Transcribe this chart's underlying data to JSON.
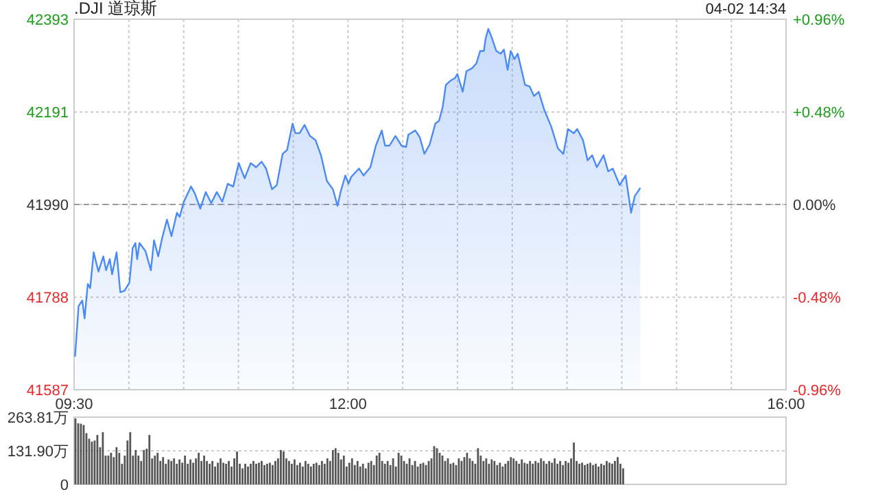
{
  "chart_data": [
    {
      "type": "area",
      "title": ".DJI 道琼斯",
      "annotations": [
        "04-02 14:34"
      ],
      "xlim": [
        9.5,
        16
      ],
      "xticks": [
        {
          "value": 9.5,
          "label": "09:30"
        },
        {
          "value": 10,
          "label": null
        },
        {
          "value": 10.5,
          "label": null
        },
        {
          "value": 11,
          "label": null
        },
        {
          "value": 11.5,
          "label": null
        },
        {
          "value": 12,
          "label": "12:00"
        },
        {
          "value": 12.5,
          "label": null
        },
        {
          "value": 13,
          "label": null
        },
        {
          "value": 13.5,
          "label": null
        },
        {
          "value": 14,
          "label": null
        },
        {
          "value": 14.5,
          "label": null
        },
        {
          "value": 15,
          "label": null
        },
        {
          "value": 15.5,
          "label": null
        },
        {
          "value": 16,
          "label": "16:00"
        }
      ],
      "ylim": [
        41587,
        42393
      ],
      "yticks": [
        41587,
        41788,
        41990,
        42191,
        42393
      ],
      "y2lim": [
        -0.96,
        0.96
      ],
      "y2ticks": [
        {
          "value": -0.96,
          "label": "-0.96%"
        },
        {
          "value": -0.48,
          "label": "-0.48%"
        },
        {
          "value": 0,
          "label": "0.00%"
        },
        {
          "value": 0.48,
          "label": "+0.48%"
        },
        {
          "value": 0.96,
          "label": "+0.96%"
        }
      ],
      "grid": true,
      "ref_lines": [
        {
          "axis": "y",
          "value": 41990,
          "color": "#999999",
          "line_style": "dashed"
        }
      ],
      "series": [
        {
          "color": "#4a8af4",
          "x": [
            9.509,
            9.541,
            9.575,
            9.596,
            9.625,
            9.647,
            9.679,
            9.722,
            9.767,
            9.792,
            9.826,
            9.847,
            9.888,
            9.922,
            9.96,
            10.005,
            10.035,
            10.06,
            10.076,
            10.097,
            10.151,
            10.201,
            10.23,
            10.268,
            10.305,
            10.348,
            10.389,
            10.439,
            10.464,
            10.502,
            10.568,
            10.602,
            10.652,
            10.702,
            10.752,
            10.803,
            10.853,
            10.903,
            10.953,
            11.003,
            11.057,
            11.112,
            11.162,
            11.212,
            11.253,
            11.307,
            11.35,
            11.404,
            11.445,
            11.495,
            11.52,
            11.558,
            11.604,
            11.654,
            11.704,
            11.754,
            11.808,
            11.863,
            11.905,
            11.933,
            11.976,
            12.005,
            12.03,
            12.101,
            12.143,
            12.205,
            12.255,
            12.309,
            12.339,
            12.38,
            12.434,
            12.489,
            12.531,
            12.552,
            12.615,
            12.656,
            12.698,
            12.747,
            12.798,
            12.832,
            12.865,
            12.894,
            12.935,
            12.978,
            12.999,
            13.048,
            13.082,
            13.132,
            13.173,
            13.207,
            13.241,
            13.257,
            13.282,
            13.316,
            13.354,
            13.395,
            13.424,
            13.458,
            13.486,
            13.52,
            13.55,
            13.617,
            13.658,
            13.699,
            13.742,
            13.792,
            13.855,
            13.917,
            13.967,
            14.009,
            14.062,
            14.093,
            14.146,
            14.188,
            14.23,
            14.272,
            14.334,
            14.376,
            14.418,
            14.481,
            14.535,
            14.585,
            14.618,
            14.644,
            14.669
          ],
          "values": [
            41659,
            41769,
            41781,
            41742,
            41817,
            41808,
            41886,
            41844,
            41877,
            41847,
            41871,
            41838,
            41886,
            41799,
            41802,
            41820,
            41895,
            41906,
            41871,
            41906,
            41889,
            41847,
            41912,
            41877,
            41918,
            41957,
            41921,
            41972,
            41963,
            41996,
            42029,
            42014,
            41981,
            42017,
            41993,
            42017,
            41996,
            42035,
            42029,
            42080,
            42047,
            42080,
            42071,
            42083,
            42068,
            42023,
            42032,
            42100,
            42109,
            42166,
            42145,
            42145,
            42163,
            42139,
            42130,
            42097,
            42041,
            42023,
            41987,
            42017,
            42053,
            42035,
            42050,
            42068,
            42053,
            42071,
            42118,
            42151,
            42118,
            42118,
            42139,
            42118,
            42115,
            42142,
            42151,
            42136,
            42100,
            42121,
            42166,
            42172,
            42202,
            42250,
            42259,
            42265,
            42274,
            42235,
            42280,
            42286,
            42297,
            42324,
            42324,
            42351,
            42372,
            42351,
            42324,
            42318,
            42327,
            42283,
            42324,
            42306,
            42318,
            42250,
            42247,
            42226,
            42235,
            42196,
            42160,
            42112,
            42100,
            42154,
            42145,
            42154,
            42130,
            42086,
            42097,
            42071,
            42097,
            42062,
            42068,
            42032,
            42053,
            41972,
            42008,
            42017,
            42026
          ]
        }
      ]
    },
    {
      "type": "bar",
      "grid": "y",
      "ylim": [
        0,
        263.81
      ],
      "yticks": [
        0,
        {
          "value": 131.9,
          "label": "131.90万"
        },
        {
          "value": 263.81,
          "label": "263.81万"
        }
      ],
      "categories": [
        null,
        null,
        null,
        null,
        null,
        null,
        null,
        null,
        null,
        null,
        null,
        null,
        null,
        null,
        null,
        null,
        null,
        null,
        null,
        null,
        null,
        null,
        null,
        null,
        null,
        null,
        null,
        null,
        null,
        null,
        null,
        null,
        null,
        null,
        null,
        null,
        null,
        null,
        null,
        null,
        null,
        null,
        null,
        null,
        null,
        null,
        null,
        null,
        null,
        null,
        null,
        null,
        null,
        null,
        null,
        null,
        null,
        null,
        null,
        null,
        null,
        null,
        null,
        null,
        null,
        null,
        null,
        null,
        null,
        null,
        null,
        null,
        null,
        null,
        null,
        null,
        null,
        null,
        null,
        null,
        null,
        null,
        null,
        null,
        null,
        null,
        null,
        null,
        null,
        null,
        null,
        null,
        null,
        null,
        null,
        null,
        null,
        null,
        null,
        null,
        null,
        null,
        null,
        null,
        null,
        null,
        null,
        null,
        null,
        null,
        null,
        null,
        null,
        null,
        null,
        null,
        null,
        null,
        null,
        null,
        null,
        null,
        null,
        null,
        null,
        null,
        null,
        null,
        null,
        null,
        null,
        null,
        null,
        null,
        null,
        null,
        null,
        null,
        null,
        null,
        null,
        null,
        null,
        null,
        null,
        null,
        null,
        null,
        null,
        null,
        null,
        null,
        null,
        null,
        null,
        null,
        null,
        null,
        null,
        null,
        null,
        null,
        null,
        null,
        null,
        null,
        null,
        null,
        null,
        null,
        null,
        null,
        null,
        null,
        null,
        null,
        null,
        null,
        null,
        null,
        null,
        null,
        null,
        null,
        null,
        null,
        null,
        null,
        null,
        null,
        null,
        null,
        null,
        null,
        null,
        null,
        null,
        null,
        null,
        null,
        null,
        null,
        null,
        null,
        null,
        null,
        null,
        null,
        null,
        null,
        null,
        null,
        null,
        null,
        null,
        null,
        null,
        null,
        null,
        null,
        null,
        null,
        null,
        null,
        null,
        null,
        null,
        null,
        null,
        null,
        null,
        null,
        null,
        null,
        null,
        null,
        null,
        null,
        null,
        null,
        null,
        null,
        null,
        null,
        null,
        null,
        null,
        null,
        null,
        null,
        null,
        null,
        null,
        null,
        null,
        null,
        null,
        null,
        null,
        null
      ],
      "series": [
        {
          "color": "#555555",
          "values": [
            259,
            240,
            238,
            233,
            201,
            179,
            168,
            172,
            194,
            146,
            205,
            113,
            113,
            124,
            107,
            146,
            124,
            81,
            113,
            172,
            205,
            113,
            135,
            113,
            92,
            135,
            140,
            194,
            102,
            113,
            124,
            92,
            107,
            81,
            98,
            92,
            102,
            81,
            98,
            85,
            113,
            81,
            98,
            85,
            102,
            124,
            92,
            113,
            92,
            81,
            92,
            70,
            85,
            102,
            85,
            81,
            92,
            70,
            102,
            129,
            81,
            63,
            81,
            70,
            81,
            92,
            81,
            85,
            92,
            76,
            81,
            85,
            76,
            92,
            102,
            135,
            129,
            102,
            92,
            81,
            98,
            76,
            85,
            70,
            92,
            81,
            70,
            81,
            85,
            76,
            92,
            81,
            102,
            92,
            135,
            142,
            124,
            98,
            113,
            70,
            85,
            102,
            76,
            92,
            70,
            81,
            63,
            85,
            92,
            76,
            113,
            124,
            92,
            81,
            92,
            76,
            102,
            70,
            124,
            113,
            92,
            81,
            102,
            76,
            92,
            70,
            81,
            85,
            76,
            92,
            102,
            150,
            142,
            124,
            113,
            92,
            102,
            81,
            85,
            76,
            102,
            92,
            107,
            124,
            102,
            92,
            81,
            142,
            113,
            92,
            102,
            81,
            98,
            92,
            76,
            85,
            70,
            81,
            92,
            107,
            102,
            92,
            81,
            98,
            85,
            81,
            92,
            81,
            92,
            85,
            102,
            92,
            81,
            92,
            85,
            102,
            81,
            92,
            76,
            92,
            85,
            102,
            164,
            92,
            81,
            85,
            76,
            81,
            85,
            76,
            81,
            70,
            81,
            76,
            92,
            85,
            81,
            92,
            107,
            81,
            63,
            null,
            null,
            null,
            null,
            null,
            null,
            null,
            null,
            null,
            null,
            null,
            null,
            null,
            null,
            null,
            null,
            null,
            null,
            null,
            null,
            null,
            null,
            null,
            null,
            null,
            null,
            null,
            null,
            null,
            null,
            null,
            null,
            null,
            null,
            null,
            null,
            null,
            null,
            null,
            null,
            null,
            null,
            null,
            null,
            null,
            null,
            null,
            null,
            null,
            null,
            null,
            null,
            null,
            null,
            null,
            null,
            null,
            null,
            null
          ]
        }
      ]
    }
  ]
}
